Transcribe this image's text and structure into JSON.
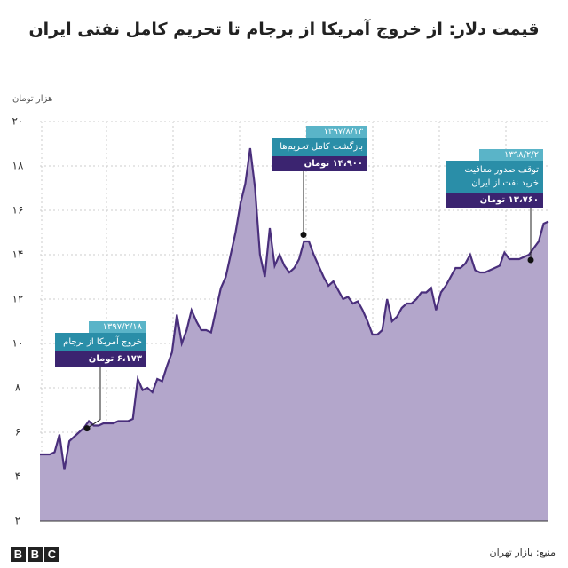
{
  "chart_data": {
    "type": "area",
    "title": "قیمت دلار: از خروج آمریکا از برجام تا تحریم کامل نفتی ایران",
    "y_label": "هزار تومان",
    "source": "منبع: بازار تهران",
    "color": "#b3a6cb",
    "line_color": "#4a2f7c",
    "values": [
      5.0,
      5.0,
      5.0,
      5.1,
      5.9,
      4.3,
      5.6,
      5.8,
      6.0,
      6.2,
      6.5,
      6.3,
      6.3,
      6.4,
      6.4,
      6.4,
      6.5,
      6.5,
      6.5,
      6.6,
      8.4,
      7.9,
      8.0,
      7.8,
      8.4,
      8.3,
      9.0,
      9.6,
      11.3,
      10.0,
      10.6,
      11.5,
      11.0,
      10.6,
      10.6,
      10.5,
      11.5,
      12.5,
      13.0,
      14.0,
      15.0,
      16.3,
      17.2,
      18.8,
      17.0,
      14.0,
      13.0,
      15.2,
      13.5,
      14.0,
      13.5,
      13.2,
      13.4,
      13.8,
      14.6,
      14.6,
      14.0,
      13.5,
      13.0,
      12.6,
      12.8,
      12.4,
      12.0,
      12.1,
      11.8,
      11.9,
      11.5,
      11.0,
      10.4,
      10.4,
      10.6,
      12.0,
      11.0,
      11.2,
      11.6,
      11.8,
      11.8,
      12.0,
      12.3,
      12.3,
      12.5,
      11.5,
      12.3,
      12.6,
      13.0,
      13.4,
      13.4,
      13.6,
      14.0,
      13.3,
      13.2,
      13.2,
      13.3,
      13.4,
      13.5,
      14.1,
      13.8,
      13.8,
      13.8,
      13.9,
      14.0,
      14.3,
      14.6,
      15.4,
      15.5
    ],
    "ylim": [
      2,
      20
    ],
    "yticks": [
      {
        "value": 2,
        "label": "۲"
      },
      {
        "value": 4,
        "label": "۴"
      },
      {
        "value": 6,
        "label": "۶"
      },
      {
        "value": 8,
        "label": "۸"
      },
      {
        "value": 10,
        "label": "۱۰"
      },
      {
        "value": 12,
        "label": "۱۲"
      },
      {
        "value": 14,
        "label": "۱۴"
      },
      {
        "value": 16,
        "label": "۱۶"
      },
      {
        "value": 18,
        "label": "۱۸"
      },
      {
        "value": 20,
        "label": "۲۰"
      }
    ],
    "grid": true,
    "annotations": [
      {
        "date": "۱۳۹۷/۲/۱۸",
        "text": "خروج آمریکا از برجام",
        "value": 6.173,
        "label": "۶،۱۷۳ تومان"
      },
      {
        "date": "۱۳۹۷/۸/۱۳",
        "text": "بازگشت کامل تحریم‌ها",
        "value": 14.9,
        "label": "۱۴،۹۰۰ تومان"
      },
      {
        "date": "۱۳۹۸/۲/۲",
        "text": "توقف صدور معافیت خرید نفت از ایران",
        "value": 13.76,
        "label": "۱۳،۷۶۰ تومان"
      }
    ]
  }
}
